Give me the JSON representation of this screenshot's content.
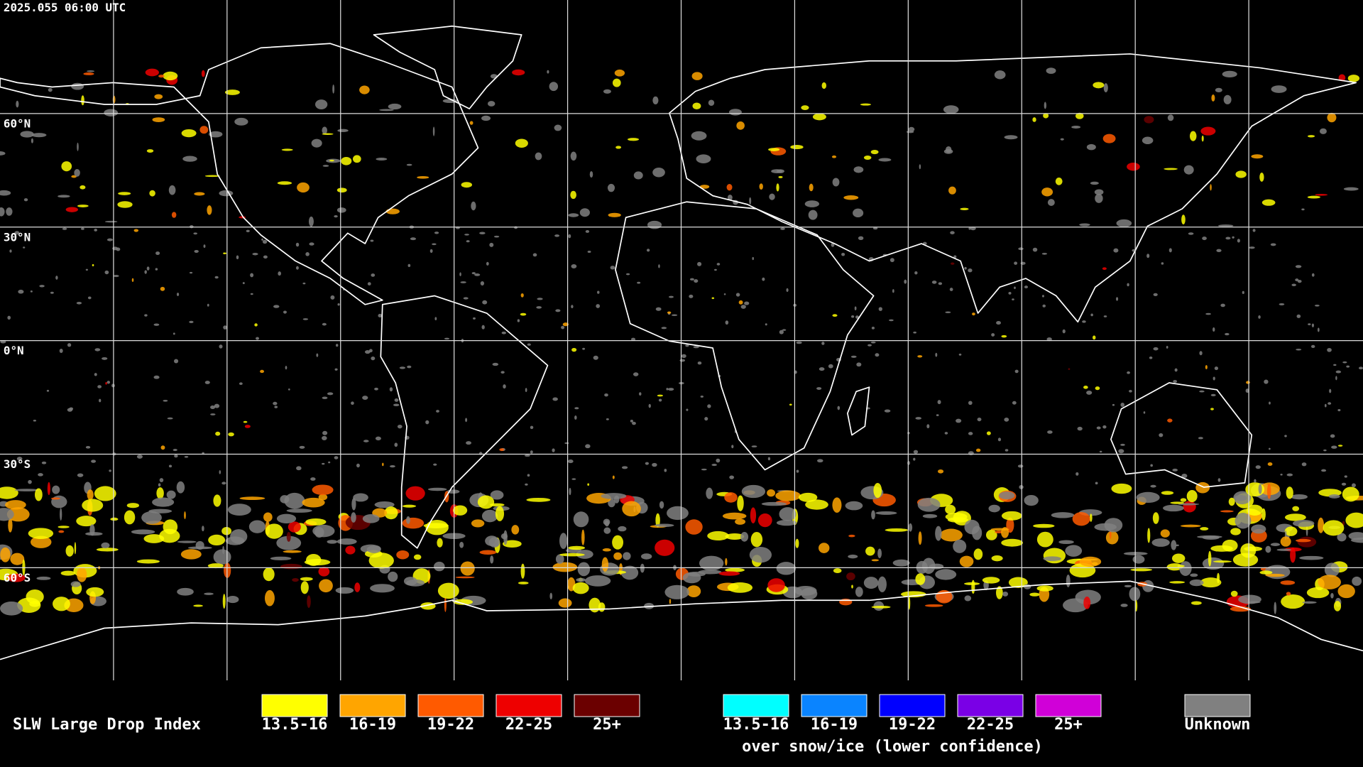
{
  "header": {
    "timestamp": "2025.055 06:00 UTC"
  },
  "grid": {
    "lat_labels": [
      "60°N",
      "30°N",
      "0°N",
      "30°S",
      "60°S"
    ]
  },
  "legend": {
    "title": "SLW Large Drop Index",
    "normal": [
      {
        "label": "13.5-16",
        "color": "#ffff00"
      },
      {
        "label": "16-19",
        "color": "#ffa500"
      },
      {
        "label": "19-22",
        "color": "#ff5a00"
      },
      {
        "label": "22-25",
        "color": "#ee0000"
      },
      {
        "label": "25+",
        "color": "#6b0000"
      }
    ],
    "snow": [
      {
        "label": "13.5-16",
        "color": "#00ffff"
      },
      {
        "label": "16-19",
        "color": "#0a84ff"
      },
      {
        "label": "19-22",
        "color": "#0000ff"
      },
      {
        "label": "22-25",
        "color": "#7a00e6"
      },
      {
        "label": "25+",
        "color": "#d000d8"
      }
    ],
    "snow_caption": "over snow/ice (lower confidence)",
    "unknown": {
      "label": "Unknown",
      "color": "#808080"
    }
  }
}
